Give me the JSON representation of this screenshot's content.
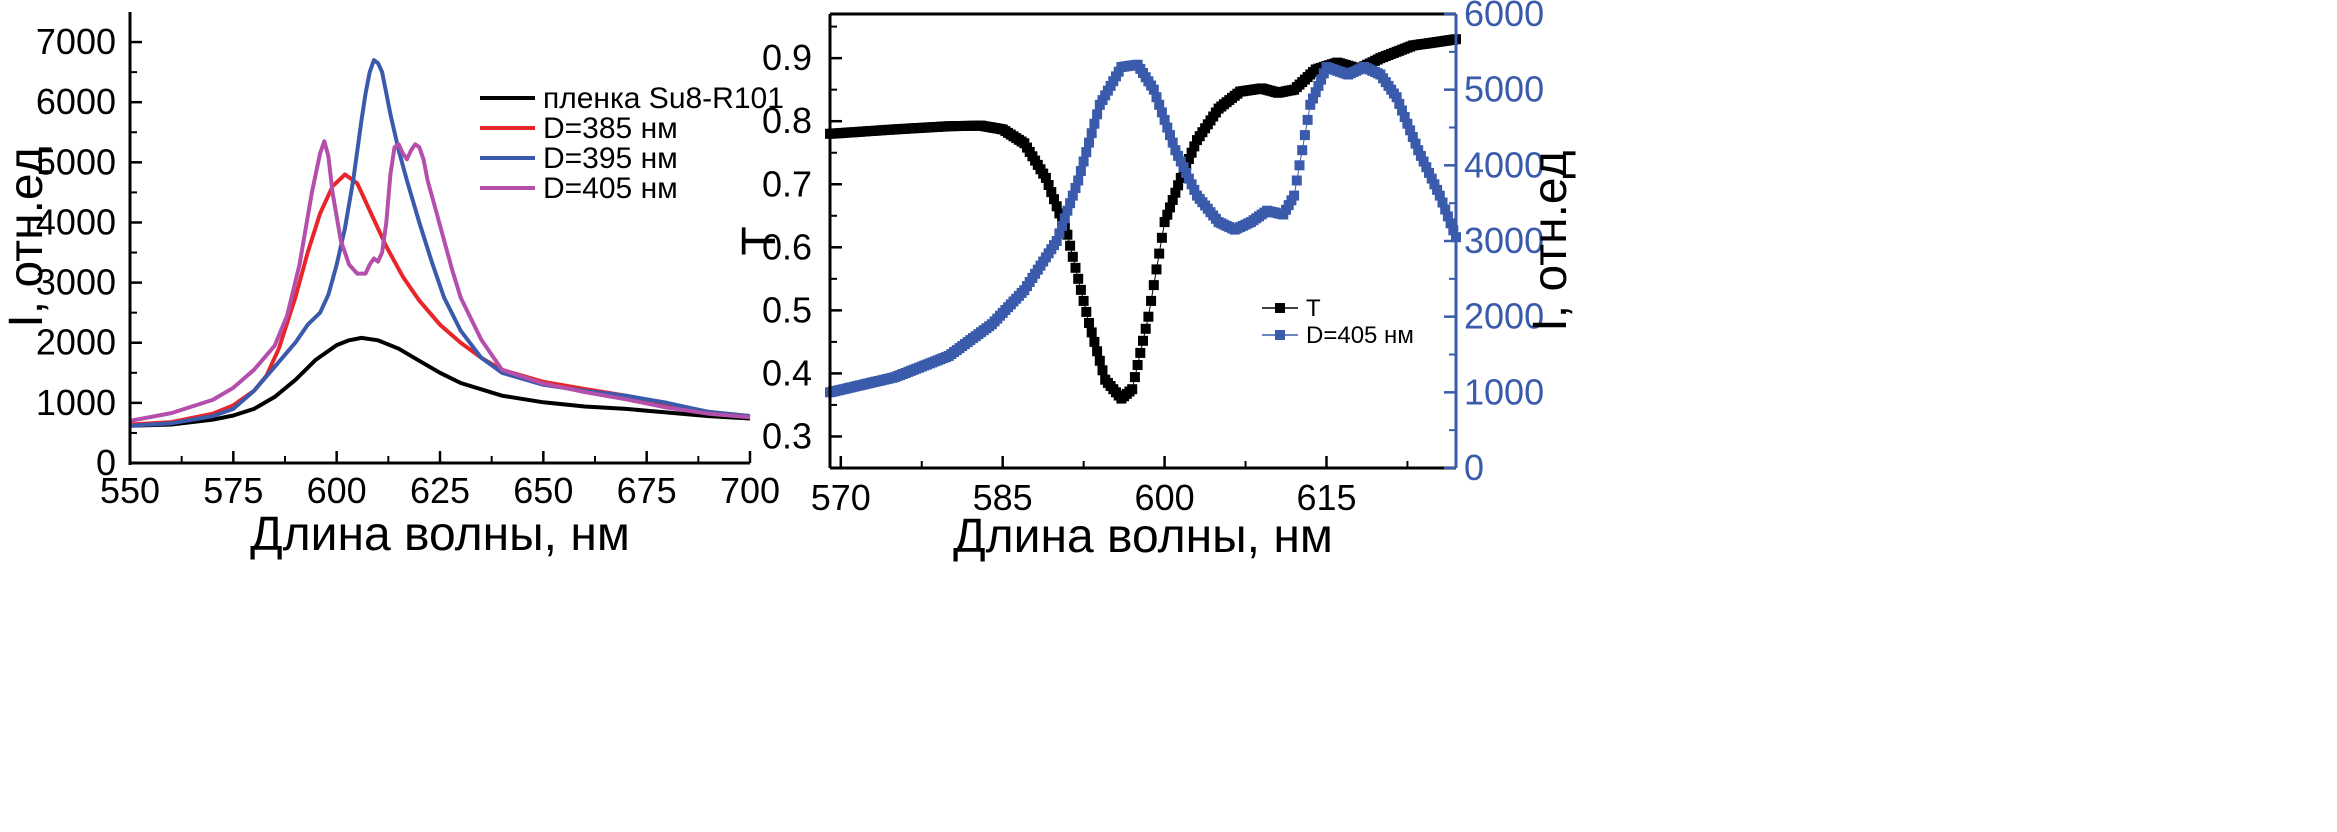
{
  "chart_data": [
    {
      "type": "line",
      "xlabel": "Длина волны, нм",
      "ylabel": "I, отн.ед",
      "xlim": [
        550,
        700
      ],
      "ylim": [
        0,
        7500
      ],
      "xticks": [
        550,
        575,
        600,
        625,
        650,
        675,
        700
      ],
      "yticks": [
        0,
        1000,
        2000,
        3000,
        4000,
        5000,
        6000,
        7000
      ],
      "legend_position": "top-right",
      "series": [
        {
          "name": "пленка Su8-R101",
          "color": "#000000",
          "x": [
            550,
            560,
            570,
            575,
            580,
            585,
            590,
            595,
            600,
            603,
            606,
            610,
            615,
            620,
            625,
            630,
            640,
            650,
            660,
            670,
            680,
            690,
            700
          ],
          "y": [
            620,
            640,
            720,
            790,
            900,
            1100,
            1380,
            1720,
            1960,
            2040,
            2080,
            2040,
            1900,
            1700,
            1500,
            1330,
            1120,
            1010,
            940,
            900,
            840,
            780,
            740
          ]
        },
        {
          "name": "D=385 нм",
          "color": "#e8262a",
          "x": [
            550,
            560,
            570,
            575,
            580,
            583,
            586,
            590,
            593,
            596,
            599,
            602,
            605,
            608,
            612,
            616,
            620,
            625,
            630,
            635,
            640,
            650,
            660,
            670,
            680,
            690,
            700
          ],
          "y": [
            640,
            680,
            820,
            960,
            1200,
            1450,
            1900,
            2750,
            3500,
            4150,
            4600,
            4800,
            4650,
            4200,
            3600,
            3100,
            2700,
            2300,
            2000,
            1750,
            1550,
            1350,
            1230,
            1120,
            980,
            850,
            780
          ]
        },
        {
          "name": "D=395 нм",
          "color": "#3a5bab",
          "x": [
            550,
            560,
            570,
            575,
            580,
            585,
            590,
            593,
            596,
            598,
            600,
            602,
            604,
            606,
            607,
            608,
            609,
            610,
            611,
            612,
            613,
            615,
            617,
            620,
            623,
            626,
            630,
            635,
            640,
            650,
            660,
            670,
            680,
            690,
            700
          ],
          "y": [
            620,
            660,
            780,
            900,
            1200,
            1600,
            2000,
            2300,
            2500,
            2800,
            3300,
            3900,
            4700,
            5700,
            6150,
            6500,
            6700,
            6650,
            6500,
            6150,
            5800,
            5200,
            4700,
            4000,
            3350,
            2750,
            2200,
            1750,
            1500,
            1300,
            1200,
            1120,
            1000,
            850,
            780
          ]
        },
        {
          "name": "D=405 нм",
          "color": "#b44fab",
          "x": [
            550,
            560,
            570,
            575,
            580,
            585,
            588,
            591,
            594,
            596,
            597,
            598,
            599,
            601,
            603,
            605,
            607,
            608,
            609,
            610,
            611,
            612,
            613,
            614,
            615,
            616,
            617,
            618,
            619,
            620,
            621,
            622,
            624,
            626,
            628,
            630,
            635,
            640,
            650,
            660,
            670,
            680,
            690,
            700
          ],
          "y": [
            700,
            830,
            1050,
            1250,
            1550,
            1950,
            2450,
            3300,
            4500,
            5150,
            5350,
            5100,
            4500,
            3700,
            3300,
            3150,
            3150,
            3300,
            3400,
            3350,
            3500,
            4000,
            4800,
            5250,
            5300,
            5150,
            5050,
            5200,
            5300,
            5250,
            5050,
            4700,
            4200,
            3700,
            3200,
            2750,
            2050,
            1550,
            1320,
            1180,
            1060,
            920,
            820,
            760
          ]
        }
      ]
    },
    {
      "type": "scatter",
      "xlabel": "Длина волны, нм",
      "ylabel": "T",
      "y2label": "I, отн.ед",
      "xlim": [
        569,
        627
      ],
      "ylim": [
        0.25,
        0.97
      ],
      "y2lim": [
        0,
        6000
      ],
      "xticks": [
        570,
        585,
        600,
        615
      ],
      "yticks": [
        0.3,
        0.4,
        0.5,
        0.6,
        0.7,
        0.8,
        0.9
      ],
      "y2ticks": [
        0,
        1000,
        2000,
        3000,
        4000,
        5000,
        6000
      ],
      "y2_color": "#3a5bab",
      "legend_position": "center-right",
      "series": [
        {
          "name": "T",
          "axis": "left",
          "color": "#000000",
          "x": [
            569,
            575,
            580,
            583,
            585,
            587,
            589,
            591,
            593,
            594.5,
            596,
            597,
            598.5,
            600,
            601.5,
            603,
            605,
            607,
            609,
            610.5,
            612,
            614,
            616,
            618,
            620,
            623,
            627
          ],
          "y": [
            0.78,
            0.787,
            0.792,
            0.793,
            0.787,
            0.765,
            0.71,
            0.62,
            0.48,
            0.39,
            0.36,
            0.375,
            0.49,
            0.64,
            0.71,
            0.77,
            0.82,
            0.847,
            0.852,
            0.845,
            0.85,
            0.882,
            0.893,
            0.883,
            0.9,
            0.92,
            0.93
          ]
        },
        {
          "name": "D=405 нм",
          "axis": "right",
          "color": "#3a5bab",
          "x": [
            569,
            575,
            580,
            584,
            587,
            590,
            592,
            594,
            596,
            597.5,
            599,
            601,
            603,
            605,
            606.5,
            608,
            609.5,
            611,
            612,
            613.5,
            615,
            617,
            618.5,
            620,
            621.5,
            623.5,
            625.5,
            627
          ],
          "y": [
            1000,
            1200,
            1480,
            1900,
            2350,
            3000,
            3800,
            4800,
            5300,
            5330,
            5000,
            4200,
            3600,
            3250,
            3150,
            3250,
            3400,
            3350,
            3600,
            4800,
            5300,
            5200,
            5300,
            5200,
            4900,
            4200,
            3600,
            3050
          ]
        }
      ]
    }
  ]
}
